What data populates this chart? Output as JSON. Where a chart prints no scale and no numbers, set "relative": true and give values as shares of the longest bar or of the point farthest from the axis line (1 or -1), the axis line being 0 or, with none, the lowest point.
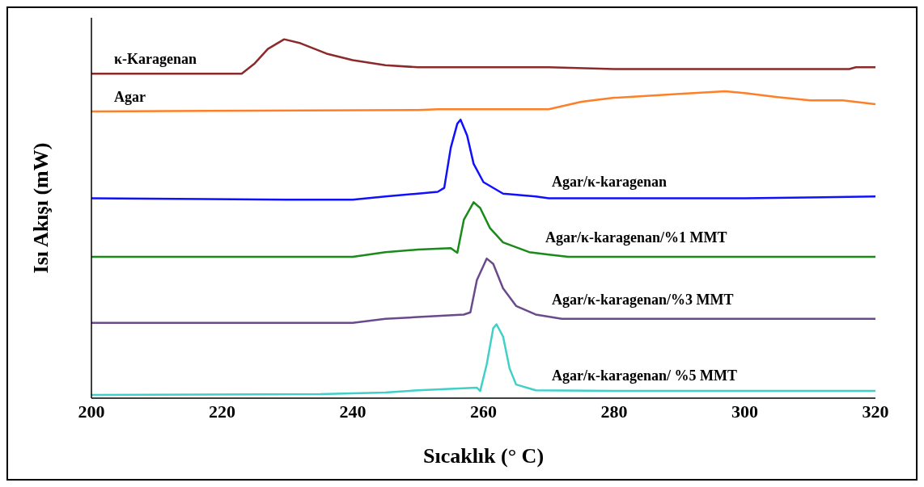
{
  "chart_data": {
    "type": "line",
    "relative": true,
    "xlabel": "Sıcaklık (° C)",
    "ylabel": "Isı Akışı (mW)",
    "xlim": [
      200,
      320
    ],
    "xticks": [
      200,
      220,
      240,
      260,
      280,
      300,
      320
    ],
    "marker": "none",
    "line_style": "solid",
    "series": [
      {
        "name": "κ-Karagenan",
        "color": "#8b2a2a",
        "x": [
          200,
          220,
          223,
          225,
          227,
          229.5,
          232,
          236,
          240,
          245,
          250,
          260,
          270,
          280,
          300,
          316,
          317,
          320
        ],
        "values": [
          0.904,
          0.904,
          0.904,
          0.933,
          0.973,
          1.0,
          0.989,
          0.96,
          0.942,
          0.928,
          0.922,
          0.922,
          0.922,
          0.917,
          0.917,
          0.917,
          0.922,
          0.922
        ]
      },
      {
        "name": "Agar",
        "color": "#ff7f27",
        "x": [
          200,
          250,
          253,
          270,
          275,
          280,
          290,
          297,
          300,
          305,
          310,
          315,
          320
        ],
        "values": [
          0.799,
          0.803,
          0.805,
          0.805,
          0.826,
          0.837,
          0.848,
          0.855,
          0.85,
          0.839,
          0.83,
          0.83,
          0.819
        ]
      },
      {
        "name": "Agar/κ-karagenan",
        "color": "#1010ff",
        "x": [
          200,
          230,
          240,
          245,
          250,
          253,
          254,
          255,
          256,
          256.5,
          257.5,
          258.5,
          260,
          263,
          268,
          270,
          300,
          320
        ],
        "values": [
          0.557,
          0.553,
          0.553,
          0.562,
          0.57,
          0.575,
          0.586,
          0.698,
          0.765,
          0.776,
          0.732,
          0.653,
          0.602,
          0.57,
          0.562,
          0.557,
          0.557,
          0.562
        ]
      },
      {
        "name": "Agar/κ-karagenan/%1 MMT",
        "color": "#1a8a1a",
        "x": [
          200,
          240,
          245,
          250,
          255,
          256,
          257,
          258.5,
          259.5,
          261,
          263,
          267,
          270,
          273,
          320
        ],
        "values": [
          0.394,
          0.394,
          0.407,
          0.414,
          0.418,
          0.405,
          0.497,
          0.546,
          0.53,
          0.474,
          0.434,
          0.407,
          0.4,
          0.394,
          0.394
        ]
      },
      {
        "name": "Agar/κ-karagenan/%3 MMT",
        "color": "#6a4a8c",
        "x": [
          200,
          240,
          245,
          250,
          257,
          258,
          259,
          260.5,
          261.5,
          263,
          265,
          268,
          272,
          320
        ],
        "values": [
          0.21,
          0.21,
          0.221,
          0.226,
          0.233,
          0.239,
          0.329,
          0.389,
          0.374,
          0.306,
          0.257,
          0.233,
          0.221,
          0.221
        ]
      },
      {
        "name": "Agar/κ-karagenan/ %5 MMT",
        "color": "#40d0c8",
        "x": [
          200,
          235,
          245,
          250,
          259,
          259.5,
          260.5,
          261.5,
          262,
          263,
          264,
          265,
          268,
          280,
          320
        ],
        "values": [
          0.009,
          0.011,
          0.016,
          0.022,
          0.029,
          0.02,
          0.094,
          0.195,
          0.206,
          0.172,
          0.083,
          0.038,
          0.022,
          0.02,
          0.02
        ]
      }
    ]
  }
}
